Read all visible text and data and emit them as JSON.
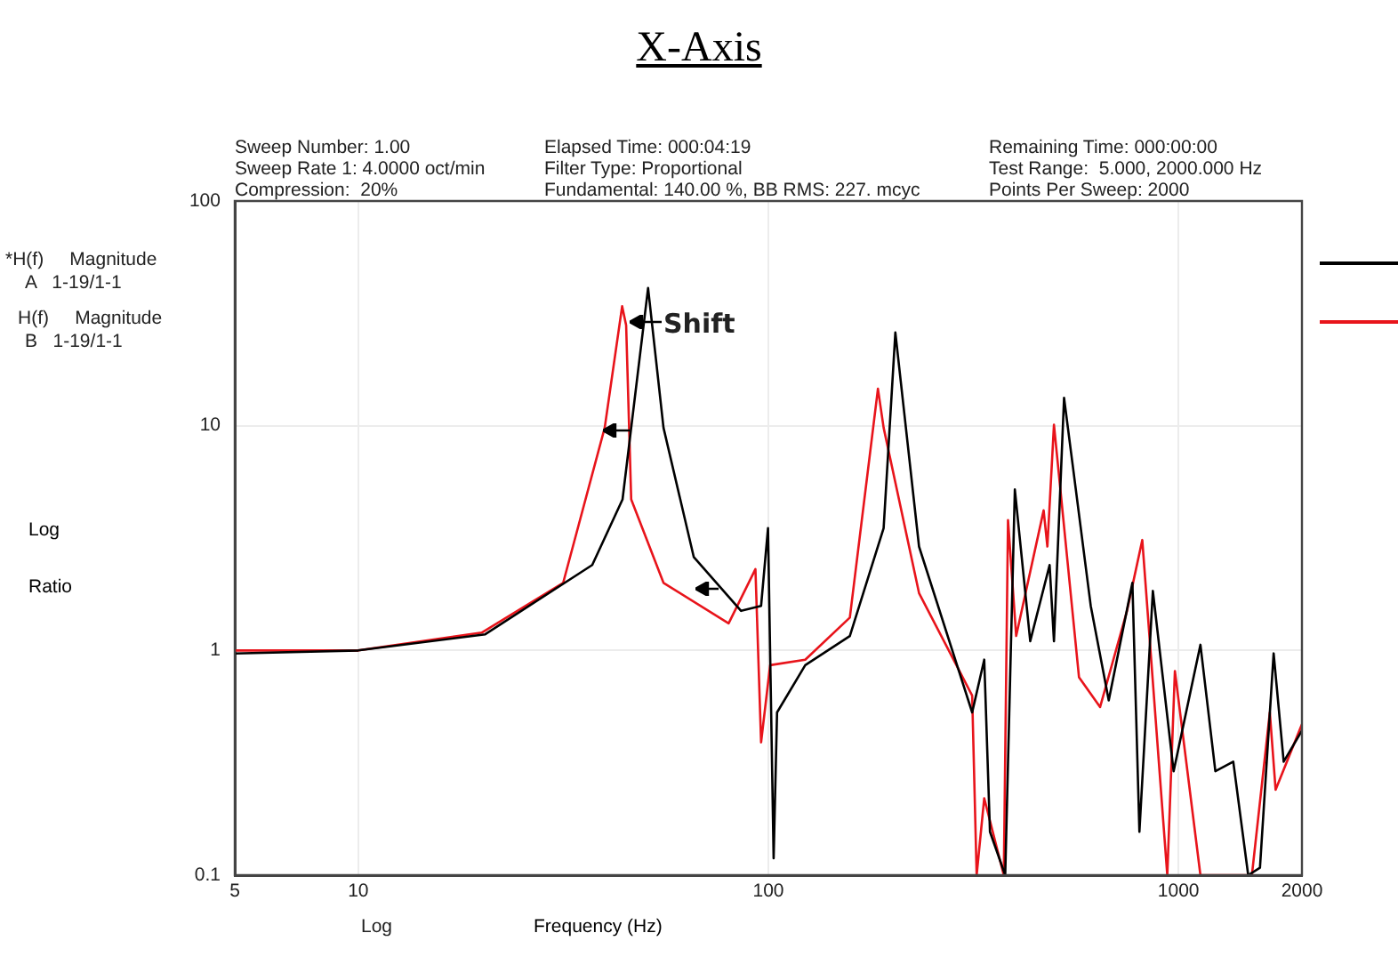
{
  "chart_data": {
    "type": "line",
    "title": "X-Axis",
    "xlabel": "Frequency (Hz)",
    "ylabel": "Log Ratio",
    "annotations": [
      "Sweep Number: 1.00",
      "Sweep Rate 1: 4.0000 oct/min",
      "Compression:  20%",
      "Elapsed Time: 000:04:19",
      "Filter Type: Proportional",
      "Fundamental: 140.00 %, BB RMS: 227. mcyc",
      "Remaining Time: 000:00:00",
      "Test Range:  5.000, 2000.000 Hz",
      "Points Per Sweep: 2000",
      "*H(f)     Magnitude",
      "A   1-19/1-1",
      "H(f)     Magnitude",
      "B   1-19/1-1",
      "Log",
      "Shift"
    ],
    "log": "xy",
    "grid": true,
    "marker": "none",
    "line_style": "solid",
    "xlim": [
      5,
      2000
    ],
    "xticks": [
      5,
      10,
      100,
      1000,
      2000
    ],
    "ylim": [
      0.1,
      100
    ],
    "yticks": [
      0.1,
      1,
      10,
      100
    ],
    "series": [
      {
        "color": "#000000",
        "x": [
          5,
          10,
          20.4,
          37.2,
          44.1,
          50.9,
          55.5,
          65.8,
          85.8,
          96,
          99.8,
          103,
          105,
          123,
          158,
          191,
          204,
          233,
          314,
          336,
          347,
          378,
          399,
          435,
          485,
          497,
          526,
          611,
          676,
          772,
          803,
          866,
          973,
          1131,
          1230,
          1360,
          1479,
          1580,
          1706,
          1805,
          2000
        ],
        "values": [
          0.97,
          1.0,
          1.18,
          2.4,
          4.7,
          41,
          9.8,
          2.6,
          1.5,
          1.58,
          3.5,
          0.119,
          0.53,
          0.86,
          1.16,
          3.5,
          26,
          2.9,
          0.53,
          0.91,
          0.156,
          0.1,
          5.2,
          1.1,
          2.4,
          1.1,
          13.3,
          1.58,
          0.6,
          2.0,
          0.156,
          1.84,
          0.29,
          1.06,
          0.29,
          0.32,
          0.1,
          0.108,
          0.97,
          0.32,
          0.44
        ]
      },
      {
        "color": "#e8141b",
        "x": [
          5,
          10,
          20,
          31.6,
          39.9,
          44,
          45,
          46.3,
          55.5,
          80,
          93,
          96,
          101,
          123,
          158,
          185,
          191,
          233,
          314,
          322,
          336,
          375,
          384,
          402,
          469,
          479,
          497,
          572,
          644,
          749,
          816,
          939,
          980,
          1131,
          1510,
          1670,
          1725,
          2000
        ],
        "values": [
          1.0,
          1.0,
          1.2,
          2.0,
          9.8,
          34,
          28,
          4.7,
          2.0,
          1.32,
          2.3,
          0.39,
          0.86,
          0.91,
          1.4,
          14.6,
          9.8,
          1.8,
          0.63,
          0.1,
          0.22,
          0.1,
          3.8,
          1.16,
          4.2,
          2.9,
          10.1,
          0.76,
          0.56,
          1.5,
          3.1,
          0.1,
          0.81,
          0.1,
          0.1,
          0.53,
          0.24,
          0.47
        ]
      }
    ]
  }
}
